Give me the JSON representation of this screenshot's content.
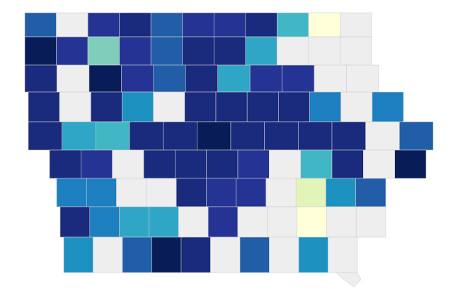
{
  "map": {
    "rows": [
      [
        "#225ea8",
        "#eeeeee",
        "#253494",
        "#1a2a7c",
        "#225ea8",
        "#253494",
        "#253494",
        "#1a2a7c",
        "#41b6c4",
        "#ffffd9",
        "#eeeeee"
      ],
      [
        "#081d58",
        "#253494",
        "#7fcdbb",
        "#253494",
        "#225ea8",
        "#1a2a7c",
        "#1a2a7c",
        "#2fa6c6",
        "#eeeeee",
        "#eeeeee",
        "#eeeeee"
      ],
      [
        "#1a2a7c",
        "#eeeeee",
        "#081d58",
        "#253494",
        "#225ea8",
        "#1a2a7c",
        "#2fa6c6",
        "#253494",
        "#253494",
        "#eeeeee",
        "#eeeeee"
      ],
      [
        "#1a2a7c",
        "#eeeeee",
        "#1a2a7c",
        "#1d91c0",
        "#eeeeee",
        "#1a2a7c",
        "#1a2a7c",
        "#1a2a7c",
        "#1a2a7c",
        "#1d7fbf",
        "#eeeeee",
        "#1d7fbf"
      ],
      [
        "#1a2a7c",
        "#2fa6c6",
        "#41b6c4",
        "#1a2a7c",
        "#1a2a7c",
        "#081d58",
        "#1a2a7c",
        "#1a2a7c",
        "#1a2a7c",
        "#1a2a7c",
        "#eeeeee",
        "#225ea8"
      ],
      [
        "#1a2a7c",
        "#253494",
        "#eeeeee",
        "#1a2a7c",
        "#1a2a7c",
        "#1a2a7c",
        "#253494",
        "#eeeeee",
        "#41b6c4",
        "#1a2a7c",
        "#eeeeee",
        "#081d58"
      ],
      [
        "#1d7fbf",
        "#1d7fbf",
        "#eeeeee",
        "#eeeeee",
        "#1a2a7c",
        "#253494",
        "#253494",
        "#eeeeee",
        "#e3f4b8",
        "#1d91c0",
        "#225ea8"
      ],
      [
        "#1a2a7c",
        "#1d7fbf",
        "#2fa6c6",
        "#2fa6c6",
        "#eeeeee",
        "#253494",
        "#eeeeee",
        "#eeeeee",
        "#ffffd9",
        "#eeeeee",
        "#eeeeee"
      ],
      [
        "#1d91c0",
        "#eeeeee",
        "#225ea8",
        "#081d58",
        "#1a2a7c",
        "#eeeeee",
        "#225ea8",
        "#eeeeee",
        "#1d91c0",
        "#eeeeee"
      ]
    ]
  }
}
